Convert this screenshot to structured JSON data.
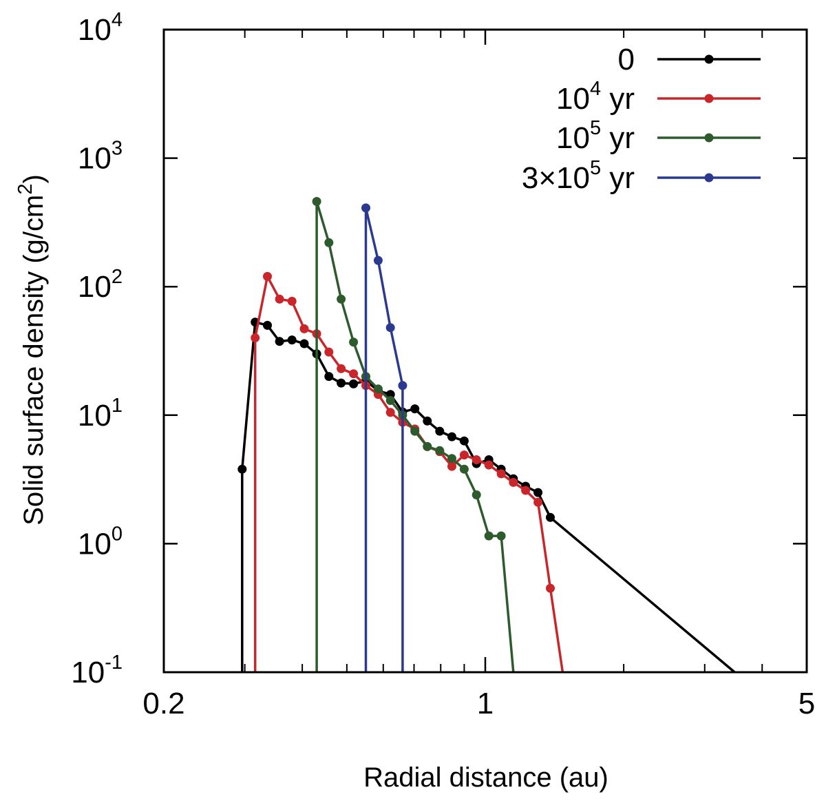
{
  "chart_data": {
    "type": "line",
    "title": "",
    "xlabel": "Radial distance (au)",
    "ylabel_parts": {
      "pre": "Solid surface density (g/cm",
      "sup": "2",
      "post": ")"
    },
    "xscale": "log",
    "yscale": "log",
    "xlim": [
      0.2,
      5
    ],
    "ylim": [
      0.1,
      10000
    ],
    "x_ticks": [
      {
        "value": 0.2,
        "label": "0.2"
      },
      {
        "value": 1,
        "label": "1"
      },
      {
        "value": 5,
        "label": "5"
      }
    ],
    "y_ticks": [
      {
        "value": 0.1,
        "base": "10",
        "exp": "-1"
      },
      {
        "value": 1,
        "base": "10",
        "exp": "0"
      },
      {
        "value": 10,
        "base": "10",
        "exp": "1"
      },
      {
        "value": 100,
        "base": "10",
        "exp": "2"
      },
      {
        "value": 1000,
        "base": "10",
        "exp": "3"
      },
      {
        "value": 10000,
        "base": "10",
        "exp": "4"
      }
    ],
    "legend_position": "top-right",
    "series": [
      {
        "name": "0",
        "legend": {
          "pre": "0",
          "sup": "",
          "post": ""
        },
        "color": "#000000",
        "x": [
          0.296,
          0.296,
          0.316,
          0.336,
          0.357,
          0.38,
          0.404,
          0.43,
          0.457,
          0.486,
          0.517,
          0.55,
          0.585,
          0.622,
          0.661,
          0.703,
          0.748,
          0.796,
          0.846,
          0.9,
          0.957,
          1.018,
          1.083,
          1.151,
          1.224,
          1.302,
          1.385,
          1.473,
          1.566,
          1.666,
          1.771,
          1.884,
          2.003,
          2.13,
          2.266,
          2.409,
          2.562,
          2.725,
          2.898,
          3.082,
          3.277,
          3.486,
          3.486
        ],
        "y": [
          0.1,
          3.8,
          53,
          50,
          37.5,
          38.5,
          36,
          30,
          20,
          17.8,
          17.5,
          18.5,
          15.5,
          14.5,
          10.6,
          11.2,
          9,
          7.5,
          6.8,
          6.3,
          4.2,
          4.5,
          3.8,
          3.2,
          2.8,
          2.5,
          1.6,
          null,
          null,
          null,
          null,
          null,
          null,
          null,
          null,
          null,
          null,
          null,
          null,
          null,
          null,
          null,
          0.1
        ]
      },
      {
        "name": "10^4 yr",
        "legend": {
          "pre": "10",
          "sup": "4",
          "post": " yr"
        },
        "color": "#c8262a",
        "x": [
          0.316,
          0.316,
          0.336,
          0.357,
          0.38,
          0.404,
          0.43,
          0.457,
          0.486,
          0.517,
          0.55,
          0.585,
          0.622,
          0.661,
          0.703,
          0.748,
          0.796,
          0.846,
          0.9,
          0.957,
          1.018,
          1.083,
          1.151,
          1.224,
          1.302,
          1.385,
          1.473,
          3.486
        ],
        "y": [
          0.1,
          40,
          120,
          80,
          77,
          47,
          43,
          31,
          23,
          21,
          17,
          14.5,
          10.5,
          8.8,
          7.8,
          5.7,
          5.2,
          4.0,
          4.9,
          4.5,
          4.1,
          3.5,
          3.0,
          2.6,
          2.1,
          0.45,
          0.1,
          null
        ]
      },
      {
        "name": "10^5 yr",
        "legend": {
          "pre": "10",
          "sup": "5",
          "post": " yr"
        },
        "color": "#2e5b2e",
        "x": [
          0.43,
          0.43,
          0.457,
          0.486,
          0.517,
          0.55,
          0.585,
          0.622,
          0.661,
          0.703,
          0.748,
          0.796,
          0.846,
          0.9,
          0.957,
          1.018,
          1.083,
          1.151,
          1.224,
          1.302,
          1.385,
          1.473,
          1.566,
          1.666
        ],
        "y": [
          0.1,
          460,
          220,
          80,
          37,
          20,
          16,
          13,
          10,
          7.5,
          5.7,
          5.3,
          4.6,
          3.8,
          2.4,
          1.15,
          1.15,
          0.1,
          null,
          null,
          null,
          null,
          null,
          null
        ]
      },
      {
        "name": "3×10^5 yr",
        "legend": {
          "pre": "3×10",
          "sup": "5",
          "post": " yr"
        },
        "color": "#2b3a8f",
        "x": [
          0.55,
          0.55,
          0.585,
          0.622,
          0.661,
          0.661
        ],
        "y": [
          0.1,
          410,
          160,
          48,
          17,
          0.1
        ]
      }
    ]
  }
}
